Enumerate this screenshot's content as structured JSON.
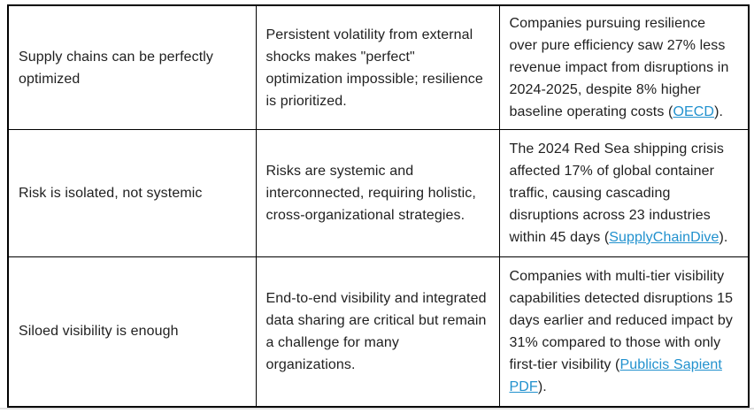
{
  "colors": {
    "text": "#1f1f1f",
    "table_border": "#000000",
    "link": "#2191ce",
    "bottom_divider": "#dedede",
    "background": "#ffffff"
  },
  "table": {
    "rows": [
      {
        "myth": "Supply chains can be perfectly optimized",
        "reality": "Persistent volatility from external shocks makes \"perfect\" optimization impossible; resilience is prioritized.",
        "evidence": {
          "before": "Companies pursuing resilience over pure efficiency saw 27% less revenue impact from disruptions in 2024-2025, despite 8% higher baseline operating costs (",
          "link": "OECD",
          "after": ")."
        }
      },
      {
        "myth": "Risk is isolated, not systemic",
        "reality": "Risks are systemic and interconnected, requiring holistic, cross-organizational strategies.",
        "evidence": {
          "before": "The 2024 Red Sea shipping crisis affected 17% of global container traffic, causing cascading disruptions across 23 industries within 45 days (",
          "link": "SupplyChainDive",
          "after": ")."
        }
      },
      {
        "myth": "Siloed visibility is enough",
        "reality": "End-to-end visibility and integrated data sharing are critical but remain a challenge for many organizations.",
        "evidence": {
          "before": "Companies with multi-tier visibility capabilities detected disruptions 15 days earlier and reduced impact by 31% compared to those with only first-tier visibility (",
          "link": "Publicis Sapient PDF",
          "after": ")."
        }
      }
    ]
  }
}
